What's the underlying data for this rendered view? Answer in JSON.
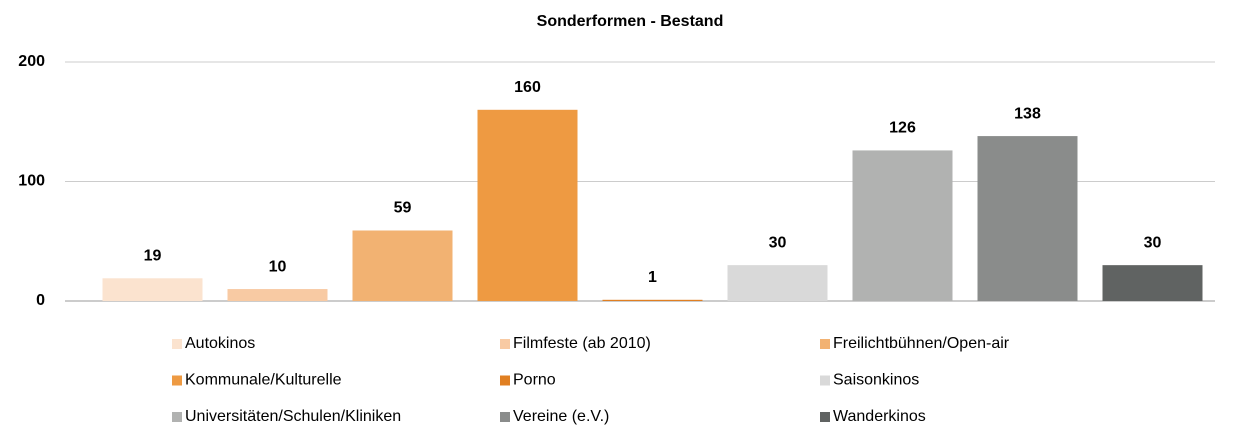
{
  "chart_data": {
    "type": "bar",
    "title": "Sonderformen - Bestand",
    "series": [
      {
        "name": "Autokinos",
        "color": "#fbe3cf",
        "values": [
          19
        ]
      },
      {
        "name": "Filmfeste (ab 2010)",
        "color": "#f8caa3",
        "values": [
          10
        ]
      },
      {
        "name": "Freilichtbühnen/Open-air",
        "color": "#f2b272",
        "values": [
          59
        ]
      },
      {
        "name": "Kommunale/Kulturelle",
        "color": "#ee9a42",
        "values": [
          160
        ]
      },
      {
        "name": "Porno",
        "color": "#e07f22",
        "values": [
          1
        ]
      },
      {
        "name": "Saisonkinos",
        "color": "#d9d9d9",
        "values": [
          30
        ]
      },
      {
        "name": "Universitäten/Schulen/Kliniken",
        "color": "#b1b2b1",
        "values": [
          126
        ]
      },
      {
        "name": "Vereine (e.V.)",
        "color": "#8a8c8b",
        "values": [
          138
        ]
      },
      {
        "name": "Wanderkinos",
        "color": "#606362",
        "values": [
          30
        ]
      }
    ],
    "ylim": [
      0,
      200
    ],
    "yticks": [
      0,
      100,
      200
    ],
    "grid": true
  }
}
